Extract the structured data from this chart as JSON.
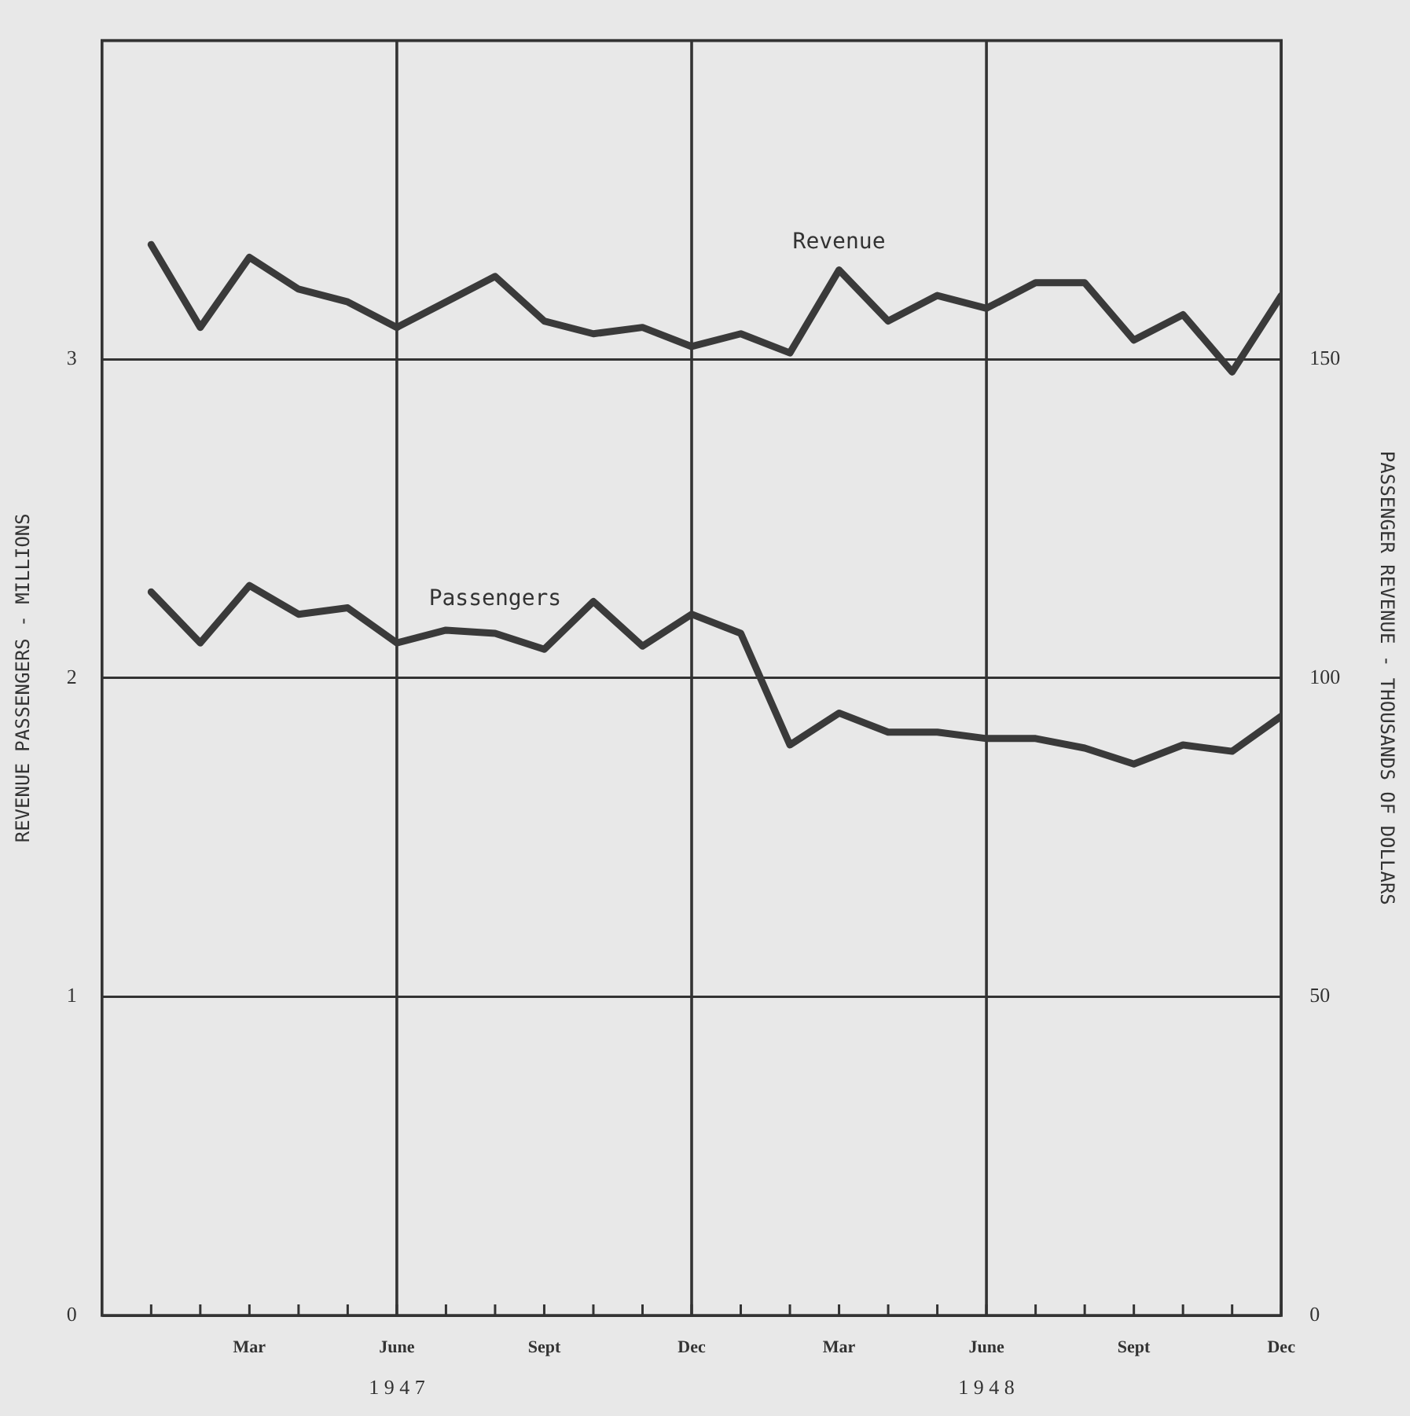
{
  "chart_data": {
    "type": "line",
    "ylabel": "REVENUE PASSENGERS - MILLIONS",
    "y2label": "PASSENGER REVENUE - THOUSANDS OF DOLLARS",
    "categories": [
      null,
      null,
      "Mar",
      null,
      null,
      "June",
      null,
      null,
      "Sept",
      null,
      null,
      "Dec",
      null,
      null,
      "Mar",
      null,
      null,
      "June",
      null,
      null,
      "Sept",
      null,
      null,
      "Dec"
    ],
    "ylim": [
      0,
      4
    ],
    "yticks": [
      0,
      1,
      2,
      3
    ],
    "y2lim": [
      0,
      200
    ],
    "y2ticks": [
      0,
      50,
      100,
      150
    ],
    "series": [
      {
        "name": "Passengers",
        "color": "#3a3a3a",
        "values": [
          2.27,
          2.11,
          2.29,
          2.2,
          2.22,
          2.11,
          2.15,
          2.14,
          2.09,
          2.24,
          2.1,
          2.2,
          2.14,
          1.79,
          1.89,
          1.83,
          1.83,
          1.81,
          1.81,
          1.78,
          1.73,
          1.79,
          1.77,
          1.88
        ]
      },
      {
        "name": "Revenue",
        "color": "#3a3a3a",
        "axis": "y2",
        "values": [
          168,
          155,
          166,
          161,
          159,
          155,
          159,
          163,
          156,
          154,
          155,
          152,
          154,
          151,
          164,
          156,
          160,
          158,
          162,
          162,
          153,
          157,
          148,
          160
        ]
      }
    ],
    "grid": true,
    "legend": false,
    "marker": "none",
    "line_style": "solid",
    "annotations": [
      "1 9 4 7",
      "1 9 4 8"
    ]
  }
}
